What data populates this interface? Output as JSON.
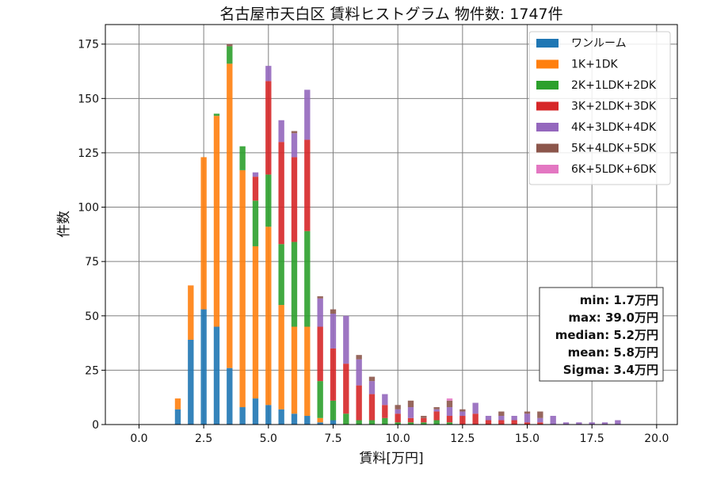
{
  "chart_data": {
    "type": "bar",
    "stacked": true,
    "title": "名古屋市天白区 賃料ヒストグラム 物件数: 1747件",
    "xlabel": "賃料[万円]",
    "ylabel": "件数",
    "xlim": [
      -1.3,
      20.8
    ],
    "ylim": [
      0,
      184
    ],
    "xticks": [
      0,
      2.5,
      5,
      7.5,
      10,
      12.5,
      15,
      17.5,
      20
    ],
    "xtick_labels": [
      "0.0",
      "2.5",
      "5.0",
      "7.5",
      "10.0",
      "12.5",
      "15.0",
      "17.5",
      "20.0"
    ],
    "yticks": [
      0,
      25,
      50,
      75,
      100,
      125,
      150,
      175
    ],
    "ytick_labels": [
      "0",
      "25",
      "50",
      "75",
      "100",
      "125",
      "150",
      "175"
    ],
    "grid": true,
    "legend_position": "top-right",
    "bin_width": 0.25,
    "x": [
      1.5,
      2.0,
      2.5,
      3.0,
      3.5,
      4.0,
      4.5,
      5.0,
      5.5,
      6.0,
      6.5,
      7.0,
      7.5,
      8.0,
      8.5,
      9.0,
      9.5,
      10.0,
      10.5,
      11.0,
      11.5,
      12.0,
      12.5,
      13.0,
      13.5,
      14.0,
      14.5,
      15.0,
      15.5,
      16.0,
      16.5,
      17.0,
      17.5,
      18.0,
      18.5,
      19.0
    ],
    "series": [
      {
        "name": "ワンルーム",
        "color": "#1f77b4",
        "values": [
          7,
          39,
          53,
          45,
          26,
          8,
          12,
          9,
          7,
          5,
          4,
          1,
          2,
          0,
          0,
          0,
          0,
          0,
          0,
          0,
          0,
          0,
          0,
          0,
          0,
          0,
          0,
          0,
          0,
          0,
          0,
          0,
          0,
          0,
          0,
          0
        ]
      },
      {
        "name": "1K+1DK",
        "color": "#ff7f0e",
        "values": [
          5,
          25,
          70,
          97,
          140,
          109,
          70,
          82,
          48,
          40,
          41,
          2,
          0,
          0,
          0,
          0,
          0,
          0,
          0,
          0,
          0,
          0,
          0,
          0,
          0,
          0,
          0,
          0,
          0,
          0,
          0,
          0,
          0,
          0,
          0,
          0
        ]
      },
      {
        "name": "2K+1LDK+2DK",
        "color": "#2ca02c",
        "values": [
          0,
          0,
          0,
          1,
          8,
          11,
          21,
          24,
          28,
          39,
          44,
          17,
          9,
          5,
          2,
          2,
          3,
          1,
          1,
          1,
          2,
          1,
          0,
          0,
          0,
          0,
          0,
          0,
          0,
          0,
          0,
          0,
          0,
          0,
          0,
          0
        ]
      },
      {
        "name": "3K+2LDK+3DK",
        "color": "#d62728",
        "values": [
          0,
          0,
          0,
          0,
          0,
          0,
          11,
          43,
          47,
          39,
          42,
          25,
          24,
          23,
          16,
          12,
          6,
          4,
          2,
          2,
          4,
          3,
          4,
          5,
          2,
          2,
          2,
          1,
          1,
          0,
          0,
          0,
          0,
          0,
          0,
          0
        ]
      },
      {
        "name": "4K+3LDK+4DK",
        "color": "#9467bd",
        "values": [
          0,
          0,
          0,
          0,
          0,
          0,
          2,
          7,
          10,
          11,
          23,
          13,
          16,
          22,
          12,
          6,
          5,
          2,
          5,
          0,
          1,
          4,
          2,
          5,
          2,
          2,
          2,
          4,
          2,
          4,
          1,
          1,
          1,
          1,
          2,
          0
        ]
      },
      {
        "name": "5K+4LDK+5DK",
        "color": "#8c564b",
        "values": [
          0,
          0,
          0,
          0,
          1,
          0,
          0,
          0,
          0,
          1,
          0,
          1,
          2,
          0,
          2,
          2,
          0,
          2,
          3,
          1,
          1,
          3,
          1,
          0,
          0,
          2,
          0,
          1,
          3,
          0,
          0,
          0,
          0,
          0,
          0,
          0
        ]
      },
      {
        "name": "6K+5LDK+6DK",
        "color": "#e377c2",
        "values": [
          0,
          0,
          0,
          0,
          0,
          0,
          0,
          0,
          0,
          0,
          0,
          0,
          0,
          0,
          0,
          0,
          0,
          0,
          0,
          0,
          0,
          1,
          0,
          0,
          0,
          0,
          0,
          0,
          0,
          0,
          0,
          0,
          0,
          0,
          0,
          0
        ]
      }
    ],
    "stats_box": [
      "min: 1.7万円",
      "max: 39.0万円",
      "median: 5.2万円",
      "mean: 5.8万円",
      "Sigma: 3.4万円"
    ]
  }
}
